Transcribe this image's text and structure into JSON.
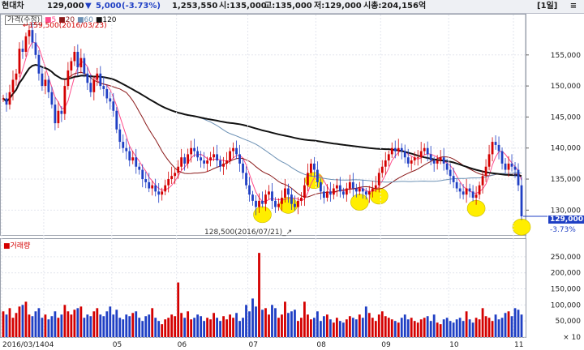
{
  "header": {
    "stock_name": "현대차",
    "price": "129,000",
    "change_arrow": "▼",
    "change": "5,000",
    "change_pct": "(-3.73%)",
    "volume": "1,253,550",
    "open": "시:135,000",
    "high": "고:135,000",
    "low": "저:129,000",
    "market_cap": "시총:204,156억",
    "period": "[1일]",
    "menu_icon": "menu-icon"
  },
  "price_panel": {
    "legend_label": "가격(수정)",
    "ma_labels": [
      "5",
      "20",
      "60",
      "120"
    ],
    "high_annotation": "159,500(2016/03/23)",
    "low_annotation": "128,500(2016/07/21)",
    "last_price_tag": "129,000",
    "last_change_tag": "-3.73%",
    "colors": {
      "up": "#d40000",
      "down": "#1f3fc4",
      "ma5": "#ff4a8a",
      "ma20": "#8b1a1a",
      "ma60": "#6b90b4",
      "ma120": "#111111",
      "highlight": "#ffee00"
    }
  },
  "volume_panel": {
    "legend_label": "거래량"
  },
  "chart_data": [
    {
      "type": "candlestick",
      "title": "",
      "y_ticks": [
        130000,
        135000,
        140000,
        145000,
        150000,
        155000
      ],
      "ylim": [
        126000,
        161500
      ],
      "x_tick_labels": [
        "2016/03/14",
        "04",
        "05",
        "06",
        "07",
        "08",
        "09",
        "10",
        "11"
      ],
      "x_tick_indices": [
        0,
        13,
        34,
        54,
        76,
        97,
        117,
        138,
        158
      ],
      "closes": [
        148000,
        147000,
        149000,
        151000,
        152000,
        156000,
        155500,
        158000,
        159000,
        157000,
        155000,
        152000,
        150000,
        151000,
        149000,
        147000,
        144000,
        146000,
        145500,
        150000,
        152500,
        154000,
        155500,
        153000,
        154500,
        152000,
        150500,
        149000,
        151000,
        152000,
        150000,
        149500,
        148000,
        147500,
        146000,
        143000,
        141000,
        140000,
        139500,
        138000,
        138500,
        137000,
        136500,
        135000,
        134500,
        133500,
        134000,
        133000,
        132500,
        133000,
        134000,
        135000,
        135500,
        136000,
        137000,
        138500,
        137500,
        139000,
        140000,
        139500,
        138500,
        138000,
        137500,
        138000,
        138500,
        139000,
        138000,
        137000,
        137500,
        138000,
        139500,
        140000,
        139000,
        137500,
        136000,
        134000,
        132500,
        131500,
        130500,
        131500,
        131000,
        132500,
        133000,
        131500,
        130500,
        131000,
        132000,
        133500,
        132500,
        131000,
        130500,
        131500,
        132000,
        134000,
        136000,
        137500,
        136500,
        134500,
        133000,
        132000,
        133000,
        132500,
        133500,
        134000,
        133000,
        132500,
        133500,
        134500,
        133500,
        133000,
        133500,
        133000,
        132500,
        133000,
        133500,
        134000,
        136000,
        137000,
        138000,
        139000,
        140000,
        139500,
        140000,
        139500,
        138500,
        137500,
        138000,
        138500,
        138500,
        139500,
        140000,
        139000,
        138000,
        137500,
        138000,
        138500,
        137500,
        136500,
        135500,
        134500,
        133500,
        133000,
        132500,
        133500,
        133000,
        132000,
        132500,
        134000,
        135500,
        137000,
        139000,
        141000,
        140500,
        139500,
        137500,
        136500,
        137500,
        137000,
        136500,
        134000,
        129000
      ],
      "ma_periods": [
        5,
        20,
        60,
        120
      ],
      "volumes": [
        80000,
        70000,
        90000,
        60000,
        75000,
        95000,
        100000,
        110000,
        70000,
        65000,
        80000,
        90000,
        60000,
        70000,
        55000,
        65000,
        80000,
        60000,
        70000,
        100000,
        80000,
        70000,
        85000,
        90000,
        95000,
        60000,
        70000,
        65000,
        80000,
        90000,
        70000,
        65000,
        80000,
        95000,
        70000,
        85000,
        60000,
        55000,
        70000,
        65000,
        75000,
        80000,
        60000,
        50000,
        65000,
        70000,
        90000,
        60000,
        50000,
        40000,
        55000,
        60000,
        70000,
        65000,
        170000,
        75000,
        60000,
        80000,
        55000,
        60000,
        70000,
        65000,
        50000,
        60000,
        55000,
        75000,
        60000,
        50000,
        65000,
        55000,
        70000,
        60000,
        75000,
        50000,
        60000,
        100000,
        80000,
        120000,
        95000,
        262000,
        85000,
        90000,
        70000,
        100000,
        90000,
        60000,
        70000,
        110000,
        75000,
        80000,
        85000,
        50000,
        60000,
        110000,
        70000,
        55000,
        60000,
        80000,
        50000,
        65000,
        70000,
        55000,
        45000,
        60000,
        50000,
        45000,
        55000,
        65000,
        60000,
        55000,
        70000,
        60000,
        95000,
        75000,
        60000,
        50000,
        70000,
        80000,
        65000,
        60000,
        55000,
        50000,
        45000,
        60000,
        70000,
        55000,
        60000,
        50000,
        45000,
        55000,
        60000,
        65000,
        50000,
        70000,
        45000,
        40000,
        55000,
        60000,
        50000,
        45000,
        55000,
        60000,
        50000,
        80000,
        55000,
        45000,
        60000,
        55000,
        90000,
        65000,
        60000,
        50000,
        70000,
        55000,
        60000,
        75000,
        80000,
        65000,
        90000,
        85000,
        70000,
        120000,
        125000
      ],
      "volume_ticks": [
        10,
        50000,
        100000,
        150000,
        200000,
        250000
      ],
      "volume_tick_labels": [
        "× 10",
        "50,000",
        "100,000",
        "150,000",
        "200,000",
        "250,000"
      ],
      "volume_max": 275000,
      "highlighted_lows": [
        80,
        88,
        96,
        110,
        116,
        146,
        164
      ]
    }
  ]
}
